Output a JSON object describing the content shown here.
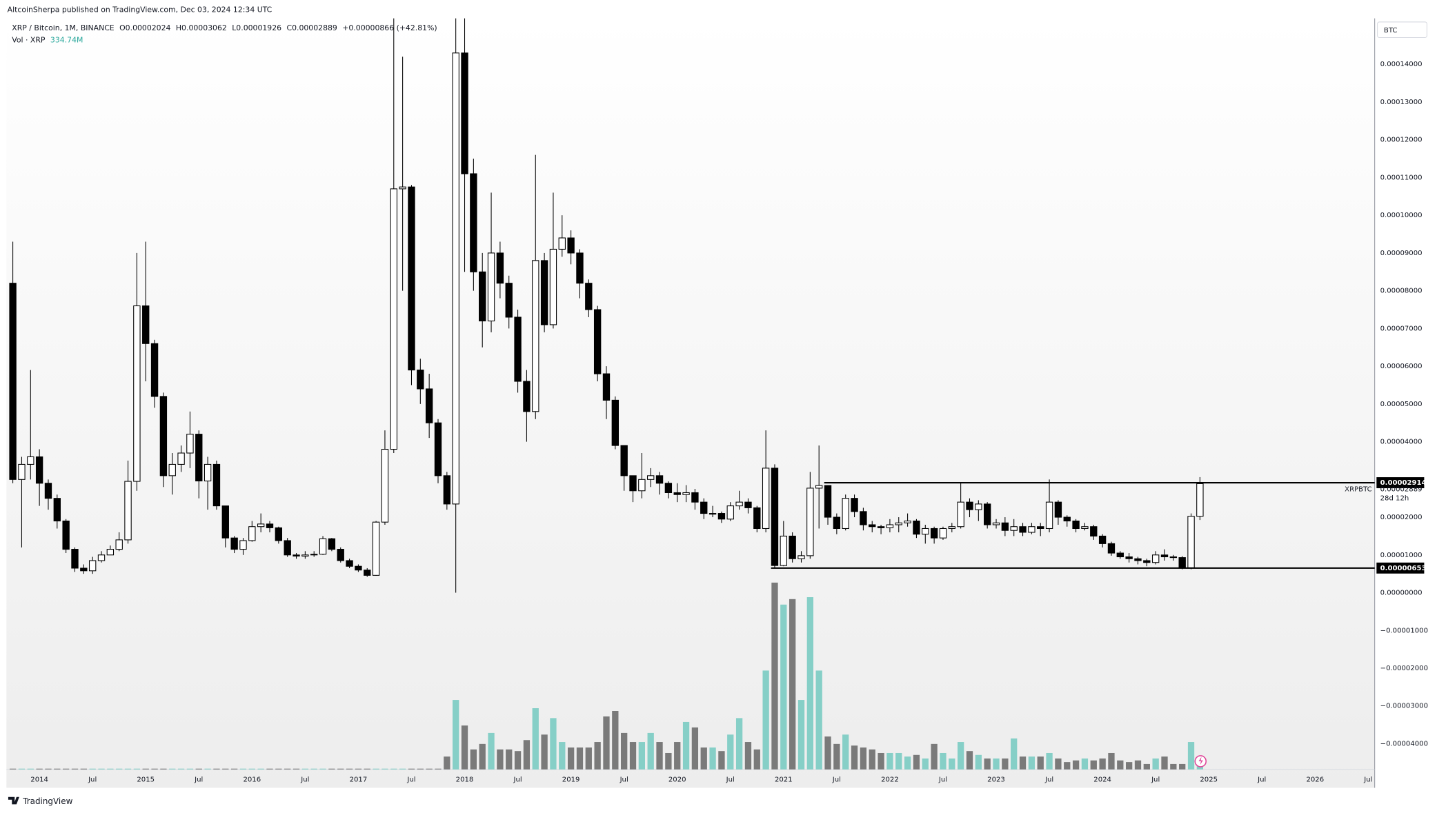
{
  "header": {
    "author_line": "AltcoinSherpa published on TradingView.com, Dec 03, 2024 12:34 UTC",
    "symbol": "XRP / Bitcoin, 1M, BINANCE",
    "ohlc": [
      {
        "key": "O",
        "value": "0.00002024"
      },
      {
        "key": "H",
        "value": "0.00003062"
      },
      {
        "key": "L",
        "value": "0.00001926"
      },
      {
        "key": "C",
        "value": "0.00002889"
      }
    ],
    "change": "+0.00000866 (+42.81%)",
    "volume_name": "Vol · XRP",
    "volume_value": "334.74M",
    "currency": "BTC",
    "logo": "TradingView"
  },
  "chart_data": {
    "type": "candlestick",
    "x": [
      "2013-10",
      "2013-11",
      "2013-12",
      "2014-01",
      "2014-02",
      "2014-03",
      "2014-04",
      "2014-05",
      "2014-06",
      "2014-07",
      "2014-08",
      "2014-09",
      "2014-10",
      "2014-11",
      "2014-12",
      "2015-01",
      "2015-02",
      "2015-03",
      "2015-04",
      "2015-05",
      "2015-06",
      "2015-07",
      "2015-08",
      "2015-09",
      "2015-10",
      "2015-11",
      "2015-12",
      "2016-01",
      "2016-02",
      "2016-03",
      "2016-04",
      "2016-05",
      "2016-06",
      "2016-07",
      "2016-08",
      "2016-09",
      "2016-10",
      "2016-11",
      "2016-12",
      "2017-01",
      "2017-02",
      "2017-03",
      "2017-04",
      "2017-05",
      "2017-06",
      "2017-07",
      "2017-08",
      "2017-09",
      "2017-10",
      "2017-11",
      "2017-12",
      "2018-01",
      "2018-02",
      "2018-03",
      "2018-04",
      "2018-05",
      "2018-06",
      "2018-07",
      "2018-08",
      "2018-09",
      "2018-10",
      "2018-11",
      "2018-12",
      "2019-01",
      "2019-02",
      "2019-03",
      "2019-04",
      "2019-05",
      "2019-06",
      "2019-07",
      "2019-08",
      "2019-09",
      "2019-10",
      "2019-11",
      "2019-12",
      "2020-01",
      "2020-02",
      "2020-03",
      "2020-04",
      "2020-05",
      "2020-06",
      "2020-07",
      "2020-08",
      "2020-09",
      "2020-10",
      "2020-11",
      "2020-12",
      "2021-01",
      "2021-02",
      "2021-03",
      "2021-04",
      "2021-05",
      "2021-06",
      "2021-07",
      "2021-08",
      "2021-09",
      "2021-10",
      "2021-11",
      "2021-12",
      "2022-01",
      "2022-02",
      "2022-03",
      "2022-04",
      "2022-05",
      "2022-06",
      "2022-07",
      "2022-08",
      "2022-09",
      "2022-10",
      "2022-11",
      "2022-12",
      "2023-01",
      "2023-02",
      "2023-03",
      "2023-04",
      "2023-05",
      "2023-06",
      "2023-07",
      "2023-08",
      "2023-09",
      "2023-10",
      "2023-11",
      "2023-12",
      "2024-01",
      "2024-02",
      "2024-03",
      "2024-04",
      "2024-05",
      "2024-06",
      "2024-07",
      "2024-08",
      "2024-09",
      "2024-10",
      "2024-11",
      "2024-12"
    ],
    "open": [
      8.2e-05,
      3e-05,
      3.4e-05,
      3.6e-05,
      2.9e-05,
      2.5e-05,
      1.9e-05,
      1.15e-05,
      6.5e-06,
      5.8e-06,
      8.5e-06,
      1e-05,
      1.15e-05,
      1.4e-05,
      2.95e-05,
      7.6e-05,
      6.6e-05,
      5.2e-05,
      3.1e-05,
      3.4e-05,
      3.7e-05,
      4.2e-05,
      2.96e-05,
      3.4e-05,
      2.3e-05,
      1.45e-05,
      1.15e-05,
      1.38e-05,
      1.75e-05,
      1.82e-05,
      1.72e-05,
      1.38e-05,
      1e-05,
      9.7e-06,
      1e-05,
      1.02e-05,
      1.43e-05,
      1.15e-05,
      8.5e-06,
      7e-06,
      6e-06,
      4.6e-06,
      1.87e-05,
      3.8e-05,
      0.000107,
      0.0001075,
      5.9e-05,
      5.4e-05,
      4.5e-05,
      3.1e-05,
      2.35e-05,
      0.000143,
      0.000111,
      8.5e-05,
      7.2e-05,
      9e-05,
      8.2e-05,
      7.3e-05,
      5.6e-05,
      4.8e-05,
      8.8e-05,
      7.1e-05,
      9.1e-05,
      9.4e-05,
      9e-05,
      8.2e-05,
      7.5e-05,
      5.8e-05,
      5.1e-05,
      3.9e-05,
      3.1e-05,
      2.7e-05,
      3e-05,
      3.1e-05,
      2.9e-05,
      2.65e-05,
      2.6e-05,
      2.65e-05,
      2.4e-05,
      2.1e-05,
      2.1e-05,
      1.95e-05,
      2.3e-05,
      2.4e-05,
      2.25e-05,
      1.7e-05,
      3.3e-05,
      7.2e-06,
      1.5e-05,
      9e-06,
      9.8e-06,
      2.77e-05,
      2.84e-05,
      2e-05,
      1.7e-05,
      2.5e-05,
      2.15e-05,
      1.8e-05,
      1.75e-05,
      1.72e-05,
      1.8e-05,
      1.85e-05,
      1.9e-05,
      1.55e-05,
      1.7e-05,
      1.45e-05,
      1.7e-05,
      1.75e-05,
      2.4e-05,
      2.2e-05,
      2.35e-05,
      1.8e-05,
      1.85e-05,
      1.65e-05,
      1.75e-05,
      1.6e-05,
      1.75e-05,
      1.7e-05,
      2.4e-05,
      2e-05,
      1.9e-05,
      1.7e-05,
      1.75e-05,
      1.5e-05,
      1.3e-05,
      1.05e-05,
      9.5e-06,
      9e-06,
      8.5e-06,
      8e-06,
      1e-05,
      9.5e-06,
      9.3e-06,
      6.6e-06,
      2.024e-05
    ],
    "high": [
      9.3e-05,
      3.6e-05,
      5.9e-05,
      3.8e-05,
      3e-05,
      2.6e-05,
      1.95e-05,
      1.2e-05,
      7.5e-06,
      9.5e-06,
      1.1e-05,
      1.25e-05,
      1.6e-05,
      3.5e-05,
      9e-05,
      9.3e-05,
      6.7e-05,
      5.3e-05,
      3.7e-05,
      3.9e-05,
      4.8e-05,
      4.3e-05,
      3.6e-05,
      3.5e-05,
      2.3e-05,
      1.5e-05,
      1.45e-05,
      1.9e-05,
      2.1e-05,
      1.9e-05,
      1.75e-05,
      1.45e-05,
      1.05e-05,
      1.1e-05,
      1.1e-05,
      1.5e-05,
      1.45e-05,
      1.2e-05,
      9e-06,
      7.5e-06,
      6.5e-06,
      1.9e-05,
      4.3e-05,
      0.000153,
      0.000142,
      0.000108,
      6.2e-05,
      5.8e-05,
      4.6e-05,
      3.2e-05,
      0.00016,
      0.00016,
      0.000115,
      9e-05,
      0.000106,
      9.3e-05,
      8.4e-05,
      7.5e-05,
      5.9e-05,
      0.000116,
      9e-05,
      0.000106,
      0.0001,
      9.6e-05,
      9.1e-05,
      8.3e-05,
      7.6e-05,
      6e-05,
      5.2e-05,
      3.9e-05,
      3.1e-05,
      3.7e-05,
      3.3e-05,
      3.2e-05,
      2.95e-05,
      2.9e-05,
      2.85e-05,
      2.75e-05,
      2.5e-05,
      2.3e-05,
      2.15e-05,
      2.4e-05,
      2.7e-05,
      2.5e-05,
      2.3e-05,
      4.3e-05,
      3.4e-05,
      1.9e-05,
      1.6e-05,
      1.1e-05,
      3.2e-05,
      3.9e-05,
      2.85e-05,
      2.1e-05,
      2.6e-05,
      2.6e-05,
      2.25e-05,
      1.9e-05,
      1.8e-05,
      1.95e-05,
      2e-05,
      2.1e-05,
      1.95e-05,
      1.8e-05,
      1.75e-05,
      1.75e-05,
      1.85e-05,
      2.9e-05,
      2.5e-05,
      2.45e-05,
      2.4e-05,
      1.95e-05,
      2e-05,
      1.95e-05,
      1.85e-05,
      1.85e-05,
      1.85e-05,
      3e-05,
      2.45e-05,
      2.05e-05,
      1.95e-05,
      1.85e-05,
      1.8e-05,
      1.55e-05,
      1.35e-05,
      1.1e-05,
      1.05e-05,
      9.5e-06,
      9e-06,
      1.1e-05,
      1.15e-05,
      1e-05,
      9.7e-06,
      2.1e-05,
      3.062e-05
    ],
    "low": [
      2.9e-05,
      1.2e-05,
      3e-05,
      2.3e-05,
      2.2e-05,
      1.7e-05,
      1.05e-05,
      5.5e-06,
      5e-06,
      5e-06,
      8e-06,
      1e-05,
      1.1e-05,
      1.3e-05,
      2.7e-05,
      5.6e-05,
      4.9e-05,
      2.8e-05,
      2.6e-05,
      3.2e-05,
      3.3e-05,
      2.5e-05,
      2.2e-05,
      2.2e-05,
      1.2e-05,
      1.05e-05,
      1e-05,
      1.35e-05,
      1.6e-05,
      1.6e-05,
      1.3e-05,
      9.5e-06,
      9e-06,
      9e-06,
      9.5e-06,
      1e-05,
      1.1e-05,
      8e-06,
      6.5e-06,
      5.5e-06,
      4.2e-06,
      4.5e-06,
      1.8e-05,
      3.7e-05,
      8e-05,
      5.5e-05,
      5e-05,
      4.1e-05,
      2.9e-05,
      2.2e-05,
      0,
      8.5e-05,
      8e-05,
      6.5e-05,
      6.9e-05,
      7.8e-05,
      7e-05,
      5.3e-05,
      4e-05,
      4.6e-05,
      6.9e-05,
      7e-05,
      8.9e-05,
      8.7e-05,
      7.8e-05,
      7.3e-05,
      5.6e-05,
      4.6e-05,
      3.8e-05,
      2.7e-05,
      2.4e-05,
      2.5e-05,
      2.8e-05,
      2.6e-05,
      2.5e-05,
      2.4e-05,
      2.4e-05,
      2.2e-05,
      1.95e-05,
      2e-05,
      1.85e-05,
      1.9e-05,
      2.2e-05,
      2.1e-05,
      1.6e-05,
      1.6e-05,
      6.53e-06,
      7e-06,
      8e-06,
      8e-06,
      9e-06,
      1.7e-05,
      1.8e-05,
      1.55e-05,
      1.65e-05,
      2e-05,
      1.65e-05,
      1.6e-05,
      1.55e-05,
      1.6e-05,
      1.6e-05,
      1.75e-05,
      1.45e-05,
      1.3e-05,
      1.3e-05,
      1.4e-05,
      1.6e-05,
      1.7e-05,
      2e-05,
      1.9e-05,
      1.7e-05,
      1.7e-05,
      1.5e-05,
      1.5e-05,
      1.5e-05,
      1.55e-05,
      1.5e-05,
      1.6e-05,
      1.8e-05,
      1.75e-05,
      1.6e-05,
      1.65e-05,
      1.4e-05,
      1.2e-05,
      9.8e-06,
      9e-06,
      8e-06,
      7.5e-06,
      7e-06,
      7.5e-06,
      8.5e-06,
      8.5e-06,
      6.2e-06,
      6.2e-06,
      1.926e-05
    ],
    "close": [
      3e-05,
      3.4e-05,
      3.6e-05,
      2.9e-05,
      2.5e-05,
      1.9e-05,
      1.15e-05,
      6.5e-06,
      5.8e-06,
      8.5e-06,
      1e-05,
      1.15e-05,
      1.4e-05,
      2.95e-05,
      7.6e-05,
      6.6e-05,
      5.2e-05,
      3.1e-05,
      3.4e-05,
      3.7e-05,
      4.2e-05,
      2.96e-05,
      3.4e-05,
      2.3e-05,
      1.45e-05,
      1.15e-05,
      1.38e-05,
      1.75e-05,
      1.82e-05,
      1.72e-05,
      1.38e-05,
      1e-05,
      9.7e-06,
      1e-05,
      1.02e-05,
      1.43e-05,
      1.15e-05,
      8.5e-06,
      7e-06,
      6e-06,
      4.6e-06,
      1.87e-05,
      3.8e-05,
      0.000107,
      0.0001075,
      5.9e-05,
      5.4e-05,
      4.5e-05,
      3.1e-05,
      2.35e-05,
      0.000143,
      0.000111,
      8.5e-05,
      7.2e-05,
      9e-05,
      8.2e-05,
      7.3e-05,
      5.6e-05,
      4.8e-05,
      8.8e-05,
      7.1e-05,
      9.1e-05,
      9.4e-05,
      9e-05,
      8.2e-05,
      7.5e-05,
      5.8e-05,
      5.1e-05,
      3.9e-05,
      3.1e-05,
      2.7e-05,
      3e-05,
      3.1e-05,
      2.9e-05,
      2.65e-05,
      2.6e-05,
      2.65e-05,
      2.4e-05,
      2.1e-05,
      2.1e-05,
      1.95e-05,
      2.3e-05,
      2.4e-05,
      2.25e-05,
      1.7e-05,
      3.3e-05,
      7.2e-06,
      1.5e-05,
      9e-06,
      9.8e-06,
      2.77e-05,
      2.84e-05,
      2e-05,
      1.7e-05,
      2.5e-05,
      2.15e-05,
      1.8e-05,
      1.75e-05,
      1.72e-05,
      1.8e-05,
      1.85e-05,
      1.9e-05,
      1.55e-05,
      1.7e-05,
      1.45e-05,
      1.7e-05,
      1.75e-05,
      2.4e-05,
      2.2e-05,
      2.35e-05,
      1.8e-05,
      1.85e-05,
      1.65e-05,
      1.75e-05,
      1.6e-05,
      1.75e-05,
      1.7e-05,
      2.4e-05,
      2e-05,
      1.9e-05,
      1.7e-05,
      1.75e-05,
      1.5e-05,
      1.3e-05,
      1.05e-05,
      9.5e-06,
      9e-06,
      8.5e-06,
      8e-06,
      1e-05,
      9.5e-06,
      9.3e-06,
      6.6e-06,
      2.024e-05,
      2.889e-05
    ],
    "up_color": "#ffffff",
    "down_color": "#000000",
    "border_color": "#000000",
    "ylim": [
      -4.684e-05,
      0.00015218
    ],
    "yticks": [
      {
        "value": 0.00014,
        "label": "0.00014000"
      },
      {
        "value": 0.00013,
        "label": "0.00013000"
      },
      {
        "value": 0.00012,
        "label": "0.00012000"
      },
      {
        "value": 0.00011,
        "label": "0.00011000"
      },
      {
        "value": 0.0001,
        "label": "0.00010000"
      },
      {
        "value": 9e-05,
        "label": "0.00009000"
      },
      {
        "value": 8e-05,
        "label": "0.00008000"
      },
      {
        "value": 7e-05,
        "label": "0.00007000"
      },
      {
        "value": 6e-05,
        "label": "0.00006000"
      },
      {
        "value": 5e-05,
        "label": "0.00005000"
      },
      {
        "value": 4e-05,
        "label": "0.00004000"
      },
      {
        "value": 2e-05,
        "label": "0.00002000"
      },
      {
        "value": 1e-05,
        "label": "0.00001000"
      },
      {
        "value": 0,
        "label": "0.00000000"
      },
      {
        "value": -1e-05,
        "label": "−0.00001000"
      },
      {
        "value": -2e-05,
        "label": "−0.00002000"
      },
      {
        "value": -3e-05,
        "label": "−0.00003000"
      },
      {
        "value": -4e-05,
        "label": "−0.00004000"
      }
    ],
    "xticks": [
      {
        "value": "2014-01",
        "label": "2014"
      },
      {
        "value": "2014-07",
        "label": "Jul"
      },
      {
        "value": "2015-01",
        "label": "2015"
      },
      {
        "value": "2015-07",
        "label": "Jul"
      },
      {
        "value": "2016-01",
        "label": "2016"
      },
      {
        "value": "2016-07",
        "label": "Jul"
      },
      {
        "value": "2017-01",
        "label": "2017"
      },
      {
        "value": "2017-07",
        "label": "Jul"
      },
      {
        "value": "2018-01",
        "label": "2018"
      },
      {
        "value": "2018-07",
        "label": "Jul"
      },
      {
        "value": "2019-01",
        "label": "2019"
      },
      {
        "value": "2019-07",
        "label": "Jul"
      },
      {
        "value": "2020-01",
        "label": "2020"
      },
      {
        "value": "2020-07",
        "label": "Jul"
      },
      {
        "value": "2021-01",
        "label": "2021"
      },
      {
        "value": "2021-07",
        "label": "Jul"
      },
      {
        "value": "2022-01",
        "label": "2022"
      },
      {
        "value": "2022-07",
        "label": "Jul"
      },
      {
        "value": "2023-01",
        "label": "2023"
      },
      {
        "value": "2023-07",
        "label": "Jul"
      },
      {
        "value": "2024-01",
        "label": "2024"
      },
      {
        "value": "2024-07",
        "label": "Jul"
      },
      {
        "value": "2025-01",
        "label": "2025"
      },
      {
        "value": "2025-07",
        "label": "Jul"
      },
      {
        "value": "2026-01",
        "label": "2026"
      },
      {
        "value": "2026-07",
        "label": "Jul"
      }
    ],
    "grid": false,
    "volume": {
      "values": [
        30,
        30,
        30,
        30,
        30,
        30,
        30,
        30,
        30,
        30,
        30,
        30,
        30,
        30,
        30,
        30,
        30,
        30,
        30,
        30,
        30,
        30,
        30,
        30,
        30,
        30,
        30,
        30,
        30,
        30,
        30,
        30,
        30,
        30,
        30,
        30,
        30,
        30,
        30,
        30,
        30,
        30,
        30,
        30,
        30,
        30,
        30,
        30,
        30,
        470,
        2530,
        1600,
        730,
        930,
        1330,
        730,
        730,
        670,
        1070,
        2230,
        1270,
        1870,
        1000,
        800,
        800,
        800,
        1000,
        1930,
        2130,
        1330,
        1000,
        1000,
        1330,
        1000,
        600,
        1000,
        1730,
        1530,
        800,
        800,
        670,
        1270,
        1870,
        1000,
        730,
        3600,
        6800,
        6000,
        6200,
        2530,
        6270,
        3600,
        1200,
        930,
        1270,
        870,
        800,
        730,
        600,
        600,
        600,
        470,
        530,
        400,
        930,
        600,
        400,
        1000,
        670,
        530,
        400,
        400,
        400,
        1130,
        470,
        470,
        470,
        600,
        400,
        270,
        330,
        400,
        330,
        400,
        600,
        330,
        270,
        330,
        200,
        400,
        470,
        200,
        200,
        1000,
        334.74
      ],
      "ylim": [
        0,
        7000
      ],
      "up_color": "#86cfc7",
      "down_color": "#7a7a7a"
    },
    "levels": [
      {
        "value": 2.914e-05,
        "label": "0.00002914",
        "start": "2021-06"
      },
      {
        "value": 6.53e-06,
        "label": "0.00000653",
        "start": "2020-12"
      }
    ],
    "last_price": {
      "symbol": "XRPBTC",
      "label": "0.00002889",
      "countdown": "28d 12h"
    }
  }
}
